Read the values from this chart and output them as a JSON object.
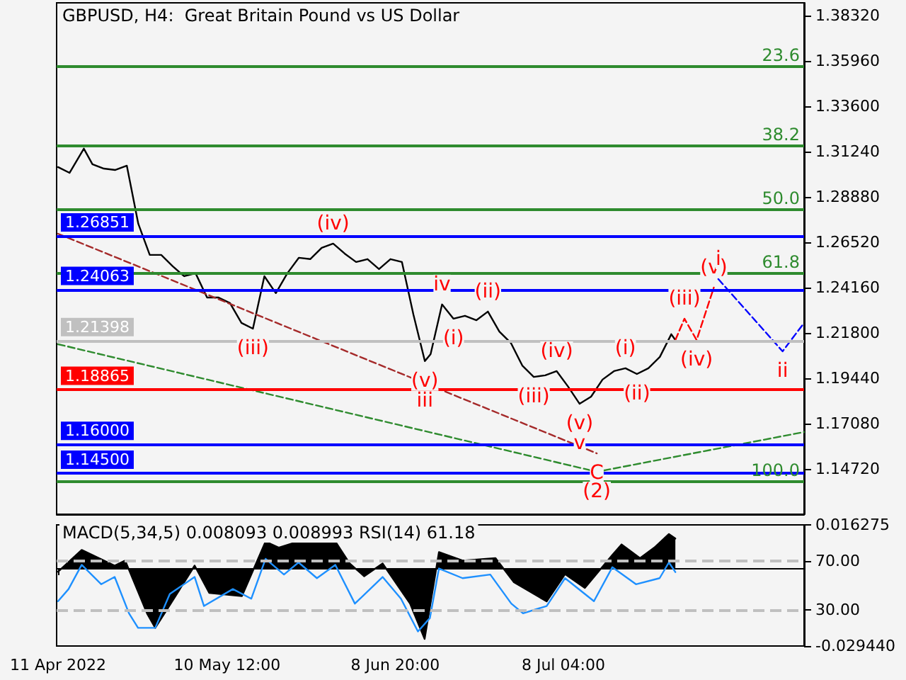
{
  "chart_data": [
    {
      "type": "line",
      "title": "GBPUSD, H4:  Great Britain Pound vs US Dollar",
      "tick_labels": "y",
      "xlim": [
        "2022-04-10T18:00",
        "2022-08-19T04:00"
      ],
      "ylim": [
        1.1236,
        1.3898
      ],
      "yticks": [
        {
          "value": 1.3832,
          "label": "1.38320"
        },
        {
          "value": 1.3596,
          "label": "1.35960"
        },
        {
          "value": 1.336,
          "label": "1.33600"
        },
        {
          "value": 1.3124,
          "label": "1.31240"
        },
        {
          "value": 1.2888,
          "label": "1.28880"
        },
        {
          "value": 1.2652,
          "label": "1.26520"
        },
        {
          "value": 1.2416,
          "label": "1.24160"
        },
        {
          "value": 1.218,
          "label": "1.21800"
        },
        {
          "value": 1.1944,
          "label": "1.19440"
        },
        {
          "value": 1.1708,
          "label": "1.17080"
        },
        {
          "value": 1.1472,
          "label": "1.14720"
        }
      ],
      "series": [
        {
          "color": "#000000",
          "x": [
            "2022-04-11",
            "2022-04-13",
            "2022-04-15T12:00",
            "2022-04-17",
            "2022-04-19",
            "2022-04-21",
            "2022-04-23",
            "2022-04-25",
            "2022-04-27",
            "2022-04-29",
            "2022-05-01",
            "2022-05-03",
            "2022-05-05",
            "2022-05-07",
            "2022-05-09",
            "2022-05-11",
            "2022-05-13",
            "2022-05-15",
            "2022-05-17",
            "2022-05-19",
            "2022-05-21",
            "2022-05-23",
            "2022-05-25",
            "2022-05-27",
            "2022-05-29",
            "2022-05-31",
            "2022-06-02",
            "2022-06-04",
            "2022-06-06",
            "2022-06-08",
            "2022-06-10",
            "2022-06-12",
            "2022-06-14",
            "2022-06-15",
            "2022-06-17",
            "2022-06-19",
            "2022-06-21",
            "2022-06-23",
            "2022-06-25",
            "2022-06-27",
            "2022-06-29",
            "2022-07-01",
            "2022-07-03",
            "2022-07-05",
            "2022-07-07",
            "2022-07-09",
            "2022-07-11",
            "2022-07-13",
            "2022-07-15",
            "2022-07-17",
            "2022-07-19",
            "2022-07-21",
            "2022-07-23",
            "2022-07-25",
            "2022-07-27",
            "2022-07-27T17:00"
          ],
          "values": [
            1.3043,
            1.3013,
            1.3139,
            1.3058,
            1.3035,
            1.3028,
            1.305,
            1.2748,
            1.2586,
            1.2586,
            1.2527,
            1.2475,
            1.249,
            1.2364,
            1.2364,
            1.2335,
            1.2232,
            1.2202,
            1.2475,
            1.2387,
            1.249,
            1.2571,
            1.2564,
            1.2623,
            1.2645,
            1.2593,
            1.2549,
            1.2564,
            1.2512,
            1.2564,
            1.2549,
            1.2276,
            1.2033,
            1.2069,
            1.2328,
            1.2254,
            1.2269,
            1.2246,
            1.2291,
            1.2187,
            1.2128,
            1.201,
            1.1951,
            1.1959,
            1.1981,
            1.19,
            1.1811,
            1.1848,
            1.1937,
            1.1981,
            1.1996,
            1.1966,
            1.1996,
            1.2055,
            1.2173,
            1.2143
          ]
        },
        {
          "color": "#2e8b2e",
          "line_style": "dashed",
          "x": [
            "2022-04-11",
            "2022-07-14",
            "2022-08-19T04:00"
          ],
          "values": [
            1.2121,
            1.1457,
            1.1664
          ]
        },
        {
          "color": "#a52a2a",
          "line_style": "dashed",
          "x": [
            "2022-04-11",
            "2022-07-14"
          ],
          "values": [
            1.2696,
            1.1553
          ]
        },
        {
          "color": "#ff0000",
          "line_style": "dashed",
          "x": [
            "2022-07-27T17:00",
            "2022-07-29T07:00",
            "2022-07-31T10:00",
            "2022-08-03T10:00"
          ],
          "values": [
            1.2143,
            1.2254,
            1.2143,
            1.2416
          ]
        },
        {
          "color": "#0000ff",
          "line_style": "dashed",
          "x": [
            "2022-08-04T05:00",
            "2022-08-15T10:00",
            "2022-08-19T04:00"
          ],
          "values": [
            1.246,
            1.2084,
            1.2232
          ]
        }
      ],
      "ref_lines": [
        {
          "axis": "y",
          "value": 1.3567,
          "color": "#2e8b2e"
        },
        {
          "axis": "y",
          "value": 1.3154,
          "color": "#2e8b2e"
        },
        {
          "axis": "y",
          "value": 1.2822,
          "color": "#2e8b2e"
        },
        {
          "axis": "y",
          "value": 1.249,
          "color": "#2e8b2e"
        },
        {
          "axis": "y",
          "value": 1.1406,
          "color": "#2e8b2e"
        },
        {
          "axis": "y",
          "value": 1.26851,
          "label": "1.26851",
          "color": "#0000ff"
        },
        {
          "axis": "y",
          "value": 1.24063,
          "label": "1.24063",
          "color": "#0000ff"
        },
        {
          "axis": "y",
          "value": 1.21398,
          "label": "1.21398",
          "color": "#c0c0c0"
        },
        {
          "axis": "y",
          "value": 1.18865,
          "label": "1.18865",
          "color": "#ff0000"
        },
        {
          "axis": "y",
          "value": 1.16,
          "label": "1.16000",
          "color": "#0000ff"
        },
        {
          "axis": "y",
          "value": 1.145,
          "label": "1.14500",
          "color": "#0000ff"
        }
      ],
      "annotations": [
        {
          "text": "23.6",
          "x": "2022-08-19T04:00",
          "y": 1.3567
        },
        {
          "text": "38.2",
          "x": "2022-08-19T04:00",
          "y": 1.3154
        },
        {
          "text": "50.0",
          "x": "2022-08-19T04:00",
          "y": 1.2822
        },
        {
          "text": "61.8",
          "x": "2022-08-19T04:00",
          "y": 1.249
        },
        {
          "text": "100.0",
          "x": "2022-08-19T04:00",
          "y": 1.1406
        },
        {
          "text": "(iv)",
          "x": "2022-05-29",
          "y": 1.2645
        },
        {
          "text": "(iii)",
          "x": "2022-05-15",
          "y": 1.2202
        },
        {
          "text": "(v)",
          "x": "2022-06-14",
          "y": 1.2033
        },
        {
          "text": "iii",
          "x": "2022-06-14",
          "y": 1.2033
        },
        {
          "text": "iv",
          "x": "2022-06-17",
          "y": 1.2328
        },
        {
          "text": "(i)",
          "x": "2022-06-19",
          "y": 1.2254
        },
        {
          "text": "(ii)",
          "x": "2022-06-25",
          "y": 1.2291
        },
        {
          "text": "(iii)",
          "x": "2022-07-03",
          "y": 1.1951
        },
        {
          "text": "(iv)",
          "x": "2022-07-07",
          "y": 1.1981
        },
        {
          "text": "(v)",
          "x": "2022-07-11",
          "y": 1.1811
        },
        {
          "text": "v",
          "x": "2022-07-11",
          "y": 1.1811
        },
        {
          "text": "C",
          "x": "2022-07-14",
          "y": 1.1553
        },
        {
          "text": "(2)",
          "x": "2022-07-14",
          "y": 1.1457
        },
        {
          "text": "(i)",
          "x": "2022-07-19",
          "y": 1.1996
        },
        {
          "text": "(ii)",
          "x": "2022-07-21",
          "y": 1.1966
        },
        {
          "text": "(iii)",
          "x": "2022-07-29T07:00",
          "y": 1.2254
        },
        {
          "text": "(iv)",
          "x": "2022-07-31T10:00",
          "y": 1.2143
        },
        {
          "text": "(v)",
          "x": "2022-08-03T10:00",
          "y": 1.2416
        },
        {
          "text": "i",
          "x": "2022-08-04T05:00",
          "y": 1.246
        },
        {
          "text": "ii",
          "x": "2022-08-15T10:00",
          "y": 1.2084
        }
      ]
    },
    {
      "type": "area",
      "title": "MACD(5,34,5) 0.008093 0.008993 RSI(14) 61.18",
      "xlim": [
        "2022-04-10T18:00",
        "2022-08-19T04:00"
      ],
      "xticks": [
        {
          "value": "2022-04-11T00:00",
          "label": "11 Apr 2022"
        },
        {
          "value": "2022-05-10T12:00",
          "label": "10 May 12:00"
        },
        {
          "value": "2022-06-08T20:00",
          "label": "8 Jun 20:00"
        },
        {
          "value": "2022-07-08T04:00",
          "label": "8 Jul 04:00"
        }
      ],
      "ylim": [
        -0.02944,
        0.016275
      ],
      "yticks": [
        {
          "value": 0.016275,
          "label": "0.016275"
        },
        {
          "value": -0.02944,
          "label": "-0.029440"
        }
      ],
      "y2lim": [
        0,
        100
      ],
      "y2ticks": [
        {
          "value": 70,
          "label": "70.00"
        },
        {
          "value": 30,
          "label": "30.00"
        }
      ],
      "series": [
        {
          "color": "#000000",
          "x": [
            "2022-04-11T00:00",
            "2022-04-15T03:00",
            "2022-04-20T21:00",
            "2022-04-22T17:00",
            "2022-04-26T14:00",
            "2022-04-27T23:00",
            "2022-04-30T00:00",
            "2022-05-04T20:00",
            "2022-05-07T09:00",
            "2022-05-13T02:00",
            "2022-05-17T05:00",
            "2022-05-19T12:00",
            "2022-05-22T23:00",
            "2022-05-29T09:00",
            "2022-05-31T21:00",
            "2022-06-03T10:00",
            "2022-06-06T15:00",
            "2022-06-11T10:00",
            "2022-06-13T23:00",
            "2022-06-16T11:00",
            "2022-06-20T14:00",
            "2022-06-26T08:00",
            "2022-06-29T13:00",
            "2022-07-05T06:00",
            "2022-07-08T11:00",
            "2022-07-11T22:00",
            "2022-07-16T17:00",
            "2022-07-18T08:00",
            "2022-07-21T13:00",
            "2022-07-24T01:00",
            "2022-07-26T14:00",
            "2022-07-27T17:00"
          ],
          "values": [
            -0.0014,
            0.0068,
            0.0009,
            0.0028,
            -0.0174,
            -0.0226,
            -0.0157,
            0.0009,
            -0.0094,
            -0.0106,
            0.01,
            0.0077,
            0.01,
            0.01,
            0.0017,
            -0.0031,
            0.0017,
            -0.0134,
            -0.0268,
            0.006,
            0.0028,
            0.0037,
            -0.0054,
            -0.0126,
            -0.0023,
            -0.0075,
            0.0049,
            0.0089,
            0.0037,
            0.0077,
            0.0128,
            0.0111
          ]
        },
        {
          "type": "line",
          "axis": "y2",
          "color": "#1e90ff",
          "x": [
            "2022-04-11T00:00",
            "2022-04-12T20:00",
            "2022-04-15T03:00",
            "2022-04-18T13:00",
            "2022-04-20T21:00",
            "2022-04-23T09:00",
            "2022-04-24T23:00",
            "2022-04-27T23:00",
            "2022-04-30T12:00",
            "2022-05-04T20:00",
            "2022-05-06T11:00",
            "2022-05-11T12:00",
            "2022-05-14T17:00",
            "2022-05-17T05:00",
            "2022-05-20T10:00",
            "2022-05-22T23:00",
            "2022-05-26T04:00",
            "2022-05-29T09:00",
            "2022-06-01T19:00",
            "2022-06-06T15:00",
            "2022-06-09T20:00",
            "2022-06-12T19:00",
            "2022-06-14T21:00",
            "2022-06-16T11:00",
            "2022-06-20T14:00",
            "2022-06-25T10:00",
            "2022-06-29T02:00",
            "2022-07-01T03:00",
            "2022-07-05T06:00",
            "2022-07-08T11:00",
            "2022-07-13T12:00",
            "2022-07-16T17:00",
            "2022-07-20T20:00",
            "2022-07-24T23:00",
            "2022-07-26T14:00",
            "2022-07-27T17:00"
          ],
          "values": [
            37,
            47,
            67,
            51,
            57,
            27,
            15,
            15,
            43,
            57,
            33,
            47,
            39,
            72,
            59,
            69,
            56,
            67,
            35,
            57,
            39,
            12,
            23,
            64,
            56,
            59,
            35,
            27,
            33,
            56,
            37,
            65,
            51,
            56,
            69,
            61
          ]
        }
      ],
      "ref_lines": [
        {
          "axis": "y2",
          "value": 70,
          "color": "#c0c0c0",
          "line_style": "dashed"
        },
        {
          "axis": "y2",
          "value": 30,
          "color": "#c0c0c0",
          "line_style": "dashed"
        }
      ]
    }
  ]
}
